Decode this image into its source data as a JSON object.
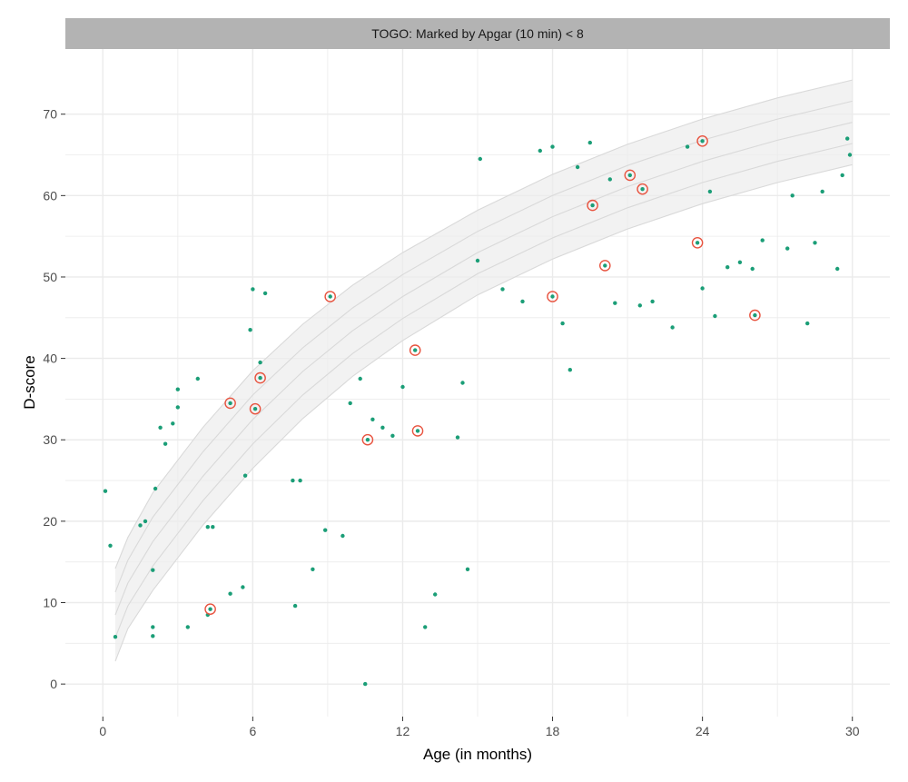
{
  "chart_data": {
    "type": "scatter",
    "strip_title": "TOGO: Marked by Apgar (10 min) < 8",
    "xlabel": "Age (in months)",
    "ylabel": "D-score",
    "xlim": [
      -1.5,
      31.5
    ],
    "ylim": [
      -4,
      78
    ],
    "x_ticks": [
      0,
      6,
      12,
      18,
      24,
      30
    ],
    "y_ticks": [
      0,
      10,
      20,
      30,
      40,
      50,
      60,
      70
    ],
    "grid": true,
    "colors": {
      "points": "#1b9e77",
      "marked": "#e8533f",
      "band": "#ececec",
      "band_line": "#d9d9d9",
      "strip": "#b3b3b3",
      "grid": "#ebebeb"
    },
    "reference_band": {
      "x": [
        0.5,
        1,
        2,
        3,
        4,
        6,
        8,
        10,
        12,
        15,
        18,
        21,
        24,
        27,
        30
      ],
      "curves": [
        [
          14.2,
          18.0,
          23.5,
          27.5,
          31.5,
          38.5,
          44.2,
          49.0,
          53.0,
          58.2,
          62.6,
          66.3,
          69.4,
          72.0,
          74.2
        ],
        [
          11.3,
          15.2,
          20.5,
          24.5,
          28.5,
          35.5,
          41.3,
          46.2,
          50.3,
          55.6,
          60.0,
          63.7,
          66.8,
          69.4,
          71.6
        ],
        [
          8.5,
          12.4,
          17.5,
          21.5,
          25.5,
          32.5,
          38.4,
          43.4,
          47.6,
          53.0,
          57.4,
          61.1,
          64.2,
          66.8,
          69.0
        ],
        [
          5.7,
          9.6,
          14.5,
          18.5,
          22.5,
          29.5,
          35.5,
          40.6,
          44.9,
          50.4,
          54.8,
          58.5,
          61.6,
          64.2,
          66.4
        ],
        [
          2.8,
          6.8,
          11.5,
          15.5,
          19.5,
          26.5,
          32.6,
          37.8,
          42.2,
          47.8,
          52.2,
          55.9,
          59.0,
          61.6,
          63.8
        ]
      ]
    },
    "marked_points": [
      [
        4.3,
        9.2
      ],
      [
        5.1,
        34.5
      ],
      [
        6.1,
        33.8
      ],
      [
        6.3,
        37.6
      ],
      [
        9.1,
        47.6
      ],
      [
        10.6,
        30.0
      ],
      [
        12.5,
        41.0
      ],
      [
        12.6,
        31.1
      ],
      [
        18.0,
        47.6
      ],
      [
        19.6,
        58.8
      ],
      [
        20.1,
        51.4
      ],
      [
        21.1,
        62.5
      ],
      [
        21.6,
        60.8
      ],
      [
        23.8,
        54.2
      ],
      [
        24.0,
        66.7
      ],
      [
        26.1,
        45.3
      ]
    ],
    "scatter_points": [
      [
        0.1,
        23.7
      ],
      [
        0.3,
        17.0
      ],
      [
        0.5,
        5.8
      ],
      [
        1.5,
        19.5
      ],
      [
        1.7,
        20.0
      ],
      [
        2.0,
        5.9
      ],
      [
        2.0,
        7.0
      ],
      [
        2.0,
        14.0
      ],
      [
        2.1,
        24.0
      ],
      [
        2.3,
        31.5
      ],
      [
        2.5,
        29.5
      ],
      [
        2.8,
        32.0
      ],
      [
        3.0,
        36.2
      ],
      [
        3.0,
        34.0
      ],
      [
        3.4,
        7.0
      ],
      [
        3.8,
        37.5
      ],
      [
        4.2,
        19.3
      ],
      [
        4.4,
        19.3
      ],
      [
        4.2,
        8.5
      ],
      [
        5.1,
        11.1
      ],
      [
        5.6,
        11.9
      ],
      [
        5.7,
        25.6
      ],
      [
        5.9,
        43.5
      ],
      [
        6.0,
        48.5
      ],
      [
        6.5,
        48.0
      ],
      [
        6.3,
        39.5
      ],
      [
        7.6,
        25.0
      ],
      [
        7.9,
        25.0
      ],
      [
        7.7,
        9.6
      ],
      [
        8.4,
        14.1
      ],
      [
        8.9,
        18.9
      ],
      [
        9.6,
        18.2
      ],
      [
        9.9,
        34.5
      ],
      [
        10.3,
        37.5
      ],
      [
        10.5,
        0.0
      ],
      [
        10.8,
        32.5
      ],
      [
        11.2,
        31.5
      ],
      [
        11.6,
        30.5
      ],
      [
        12.0,
        36.5
      ],
      [
        12.9,
        7.0
      ],
      [
        13.3,
        11.0
      ],
      [
        14.2,
        30.3
      ],
      [
        14.6,
        14.1
      ],
      [
        14.4,
        37.0
      ],
      [
        15.1,
        64.5
      ],
      [
        15.0,
        52.0
      ],
      [
        16.0,
        48.5
      ],
      [
        16.8,
        47.0
      ],
      [
        17.5,
        65.5
      ],
      [
        18.0,
        66.0
      ],
      [
        18.4,
        44.3
      ],
      [
        18.7,
        38.6
      ],
      [
        19.0,
        63.5
      ],
      [
        19.5,
        66.5
      ],
      [
        20.3,
        62.0
      ],
      [
        20.5,
        46.8
      ],
      [
        21.5,
        46.5
      ],
      [
        22.0,
        47.0
      ],
      [
        22.8,
        43.8
      ],
      [
        23.4,
        66.0
      ],
      [
        24.0,
        48.6
      ],
      [
        24.3,
        60.5
      ],
      [
        24.5,
        45.2
      ],
      [
        25.0,
        51.2
      ],
      [
        25.5,
        51.8
      ],
      [
        26.0,
        51.0
      ],
      [
        26.4,
        54.5
      ],
      [
        27.4,
        53.5
      ],
      [
        27.6,
        60.0
      ],
      [
        28.2,
        44.3
      ],
      [
        28.5,
        54.2
      ],
      [
        28.8,
        60.5
      ],
      [
        29.4,
        51.0
      ],
      [
        29.6,
        62.5
      ],
      [
        29.8,
        67.0
      ],
      [
        29.9,
        65.0
      ]
    ]
  }
}
